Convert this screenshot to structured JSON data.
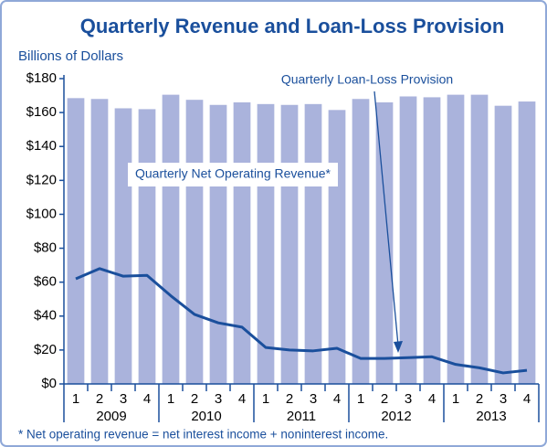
{
  "chart_data": {
    "type": "bar_line",
    "title": "Quarterly Revenue and Loan-Loss Provision",
    "y_label": "Billions of Dollars",
    "categories": [
      "1",
      "2",
      "3",
      "4",
      "1",
      "2",
      "3",
      "4",
      "1",
      "2",
      "3",
      "4",
      "1",
      "2",
      "3",
      "4",
      "1",
      "2",
      "3",
      "4"
    ],
    "years": [
      "2009",
      "2010",
      "2011",
      "2012",
      "2013"
    ],
    "series": [
      {
        "name": "Quarterly Net Operating Revenue*",
        "type": "bar",
        "color": "#aab3dc",
        "values": [
          168.5,
          168,
          162.5,
          162,
          170.5,
          167.5,
          164.5,
          166,
          165,
          164.5,
          165,
          161.5,
          168,
          166,
          169.5,
          169,
          170.5,
          170.5,
          164,
          166.5
        ]
      },
      {
        "name": "Quarterly Loan-Loss Provision",
        "type": "line",
        "color": "#1a4f9c",
        "values": [
          62,
          68,
          63.5,
          64,
          52,
          41,
          36,
          33.5,
          21.5,
          20,
          19.5,
          21,
          15,
          15,
          15.5,
          16,
          11.5,
          9.5,
          6.5,
          8
        ]
      }
    ],
    "ylim": [
      0,
      180
    ],
    "yticks": [
      {
        "value": 0,
        "label": "$0"
      },
      {
        "value": 20,
        "label": "$20"
      },
      {
        "value": 40,
        "label": "$40"
      },
      {
        "value": 60,
        "label": "$60"
      },
      {
        "value": 80,
        "label": "$80"
      },
      {
        "value": 100,
        "label": "$100"
      },
      {
        "value": 120,
        "label": "$120"
      },
      {
        "value": 140,
        "label": "$140"
      },
      {
        "value": 160,
        "label": "$160"
      },
      {
        "value": 180,
        "label": "$180"
      }
    ],
    "grid": false,
    "footnote": "* Net operating revenue = net interest income + noninterest income."
  }
}
